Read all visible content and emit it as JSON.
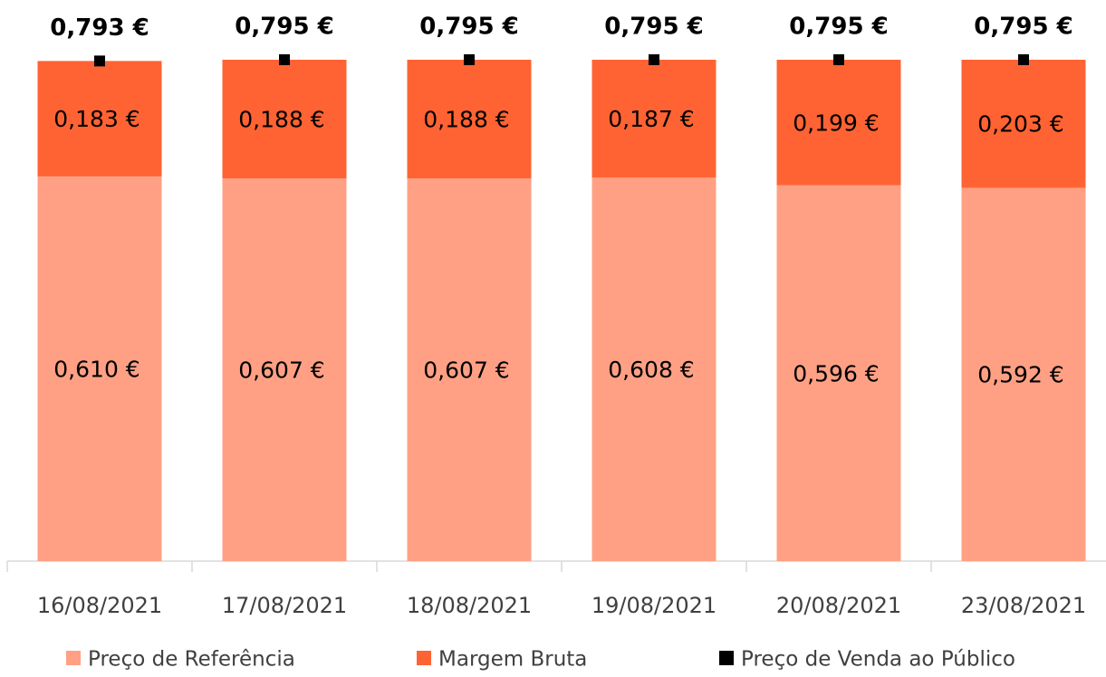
{
  "chart_data": {
    "type": "stacked-bar",
    "categories": [
      "16/08/2021",
      "17/08/2021",
      "18/08/2021",
      "19/08/2021",
      "20/08/2021",
      "23/08/2021"
    ],
    "series": [
      {
        "name": "Preço de Referência",
        "color": "#ffa084",
        "values": [
          0.61,
          0.607,
          0.607,
          0.608,
          0.596,
          0.592
        ],
        "value_labels": [
          "0,610 €",
          "0,607 €",
          "0,607 €",
          "0,608 €",
          "0,596 €",
          "0,592 €"
        ]
      },
      {
        "name": "Margem Bruta",
        "color": "#ff6333",
        "values": [
          0.183,
          0.188,
          0.188,
          0.187,
          0.199,
          0.203
        ],
        "value_labels": [
          "0,183 €",
          "0,188 €",
          "0,188 €",
          "0,187 €",
          "0,199 €",
          "0,203 €"
        ]
      },
      {
        "name": "Preço de Venda ao Público",
        "color": "#000000",
        "type": "marker",
        "values": [
          0.793,
          0.795,
          0.795,
          0.795,
          0.795,
          0.795
        ],
        "value_labels": [
          "0,793 €",
          "0,795 €",
          "0,795 €",
          "0,795 €",
          "0,795 €",
          "0,795 €"
        ]
      }
    ]
  }
}
